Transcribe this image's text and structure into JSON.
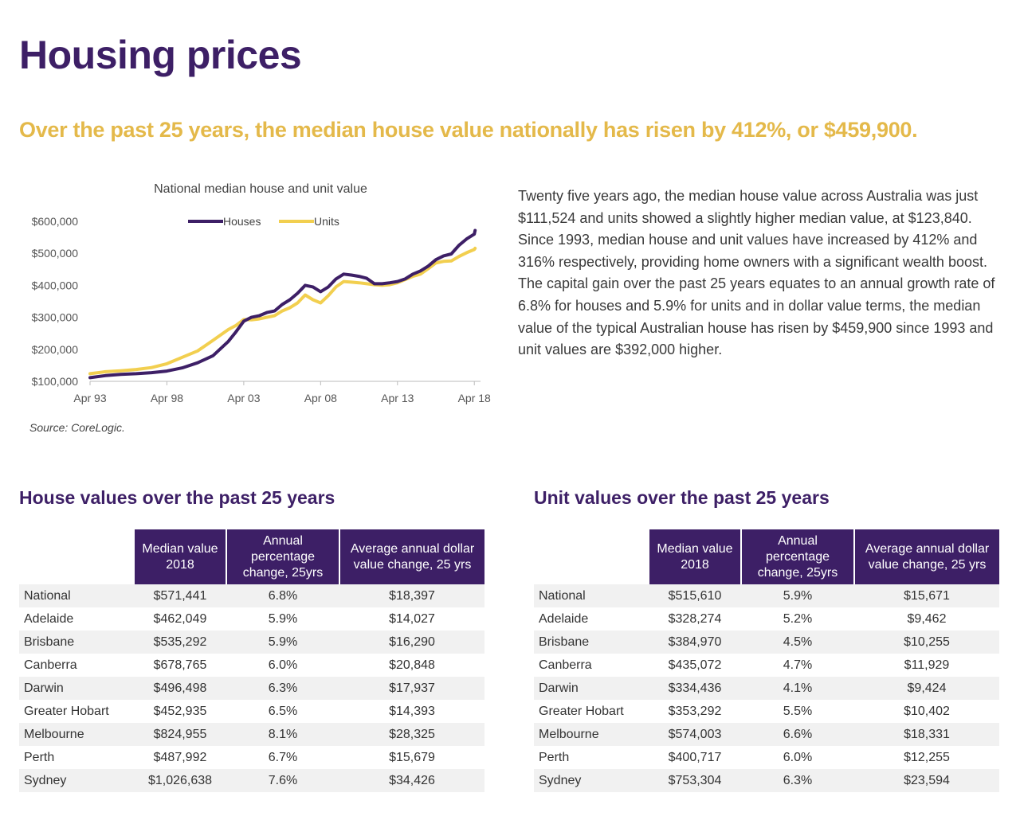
{
  "title": "Housing prices",
  "subtitle": "Over the past 25 years, the median house value nationally has risen by 412%, or $459,900.",
  "chart_data": {
    "type": "line",
    "title": "National median house and unit value",
    "x_tick_labels": [
      "Apr 93",
      "Apr 98",
      "Apr 03",
      "Apr 08",
      "Apr 13",
      "Apr 18"
    ],
    "x_tick_years": [
      1993,
      1998,
      2003,
      2008,
      2013,
      2018
    ],
    "xlim": [
      1993,
      2018.3
    ],
    "y_tick_values": [
      100000,
      200000,
      300000,
      400000,
      500000,
      600000
    ],
    "y_tick_labels": [
      "$100,000",
      "$200,000",
      "$300,000",
      "$400,000",
      "$500,000",
      "$600,000"
    ],
    "ylim": [
      100000,
      600000
    ],
    "legend_position": "top-center",
    "series": [
      {
        "name": "Houses",
        "color": "#3d1f66",
        "x": [
          1993,
          1994,
          1995,
          1996,
          1997,
          1998,
          1999,
          2000,
          2001,
          2002,
          2002.5,
          2003,
          2003.5,
          2004,
          2004.5,
          2005,
          2005.5,
          2006,
          2006.5,
          2007,
          2007.5,
          2008,
          2008.5,
          2009,
          2009.5,
          2010,
          2010.5,
          2011,
          2011.5,
          2012,
          2012.5,
          2013,
          2013.5,
          2014,
          2014.5,
          2015,
          2015.5,
          2016,
          2016.5,
          2017,
          2017.5,
          2018,
          2018.05
        ],
        "values": [
          111524,
          118000,
          122000,
          124000,
          127000,
          132000,
          142000,
          158000,
          180000,
          225000,
          255000,
          288000,
          300000,
          305000,
          315000,
          320000,
          340000,
          355000,
          375000,
          400000,
          395000,
          380000,
          395000,
          420000,
          435000,
          432000,
          428000,
          422000,
          405000,
          405000,
          408000,
          412000,
          420000,
          435000,
          445000,
          460000,
          480000,
          492000,
          498000,
          525000,
          545000,
          560000,
          571441
        ]
      },
      {
        "name": "Units",
        "color": "#f2cf4f",
        "x": [
          1993,
          1994,
          1995,
          1996,
          1997,
          1998,
          1999,
          2000,
          2001,
          2002,
          2002.5,
          2003,
          2003.5,
          2004,
          2004.5,
          2005,
          2005.5,
          2006,
          2006.5,
          2007,
          2007.5,
          2008,
          2008.5,
          2009,
          2009.5,
          2010,
          2010.5,
          2011,
          2011.5,
          2012,
          2012.5,
          2013,
          2013.5,
          2014,
          2014.5,
          2015,
          2015.5,
          2016,
          2016.5,
          2017,
          2017.5,
          2018,
          2018.05
        ],
        "values": [
          123840,
          130000,
          133000,
          137000,
          143000,
          155000,
          175000,
          195000,
          228000,
          262000,
          275000,
          293000,
          292000,
          295000,
          300000,
          305000,
          320000,
          330000,
          345000,
          370000,
          355000,
          345000,
          368000,
          395000,
          412000,
          410000,
          408000,
          405000,
          402000,
          400000,
          402000,
          408000,
          418000,
          428000,
          435000,
          452000,
          470000,
          475000,
          476000,
          490000,
          502000,
          512000,
          515610
        ]
      }
    ],
    "source": "Source: CoreLogic."
  },
  "body_text": "Twenty five years ago, the median house value across Australia was just $111,524 and units showed a slightly higher median value, at $123,840. Since 1993, median house and unit values have increased by 412% and 316% respectively, providing home owners with a significant wealth boost. The capital gain over the past 25 years equates to an annual growth rate of 6.8% for houses and 5.9% for units and in dollar value terms, the median value of the typical Australian house has risen by $459,900 since 1993 and unit values are $392,000 higher.",
  "house_table": {
    "title": "House values over the past 25 years",
    "headers": [
      "Median value 2018",
      "Annual percentage change, 25yrs",
      "Average annual dollar value change, 25 yrs"
    ],
    "rows": [
      {
        "city": "National",
        "median": "$571,441",
        "pct": "6.8%",
        "dollar": "$18,397"
      },
      {
        "city": "Adelaide",
        "median": "$462,049",
        "pct": "5.9%",
        "dollar": "$14,027"
      },
      {
        "city": "Brisbane",
        "median": "$535,292",
        "pct": "5.9%",
        "dollar": "$16,290"
      },
      {
        "city": "Canberra",
        "median": "$678,765",
        "pct": "6.0%",
        "dollar": "$20,848"
      },
      {
        "city": "Darwin",
        "median": "$496,498",
        "pct": "6.3%",
        "dollar": "$17,937"
      },
      {
        "city": "Greater Hobart",
        "median": "$452,935",
        "pct": "6.5%",
        "dollar": "$14,393"
      },
      {
        "city": "Melbourne",
        "median": "$824,955",
        "pct": "8.1%",
        "dollar": "$28,325"
      },
      {
        "city": "Perth",
        "median": "$487,992",
        "pct": "6.7%",
        "dollar": "$15,679"
      },
      {
        "city": "Sydney",
        "median": "$1,026,638",
        "pct": "7.6%",
        "dollar": "$34,426"
      }
    ]
  },
  "unit_table": {
    "title": "Unit values over the past 25 years",
    "headers": [
      "Median value 2018",
      "Annual percentage change, 25yrs",
      "Average annual dollar value change, 25 yrs"
    ],
    "rows": [
      {
        "city": "National",
        "median": "$515,610",
        "pct": "5.9%",
        "dollar": "$15,671"
      },
      {
        "city": "Adelaide",
        "median": "$328,274",
        "pct": "5.2%",
        "dollar": "$9,462"
      },
      {
        "city": "Brisbane",
        "median": "$384,970",
        "pct": "4.5%",
        "dollar": "$10,255"
      },
      {
        "city": "Canberra",
        "median": "$435,072",
        "pct": "4.7%",
        "dollar": "$11,929"
      },
      {
        "city": "Darwin",
        "median": "$334,436",
        "pct": "4.1%",
        "dollar": "$9,424"
      },
      {
        "city": "Greater Hobart",
        "median": "$353,292",
        "pct": "5.5%",
        "dollar": "$10,402"
      },
      {
        "city": "Melbourne",
        "median": "$574,003",
        "pct": "6.6%",
        "dollar": "$18,331"
      },
      {
        "city": "Perth",
        "median": "$400,717",
        "pct": "6.0%",
        "dollar": "$12,255"
      },
      {
        "city": "Sydney",
        "median": "$753,304",
        "pct": "6.3%",
        "dollar": "$23,594"
      }
    ]
  }
}
